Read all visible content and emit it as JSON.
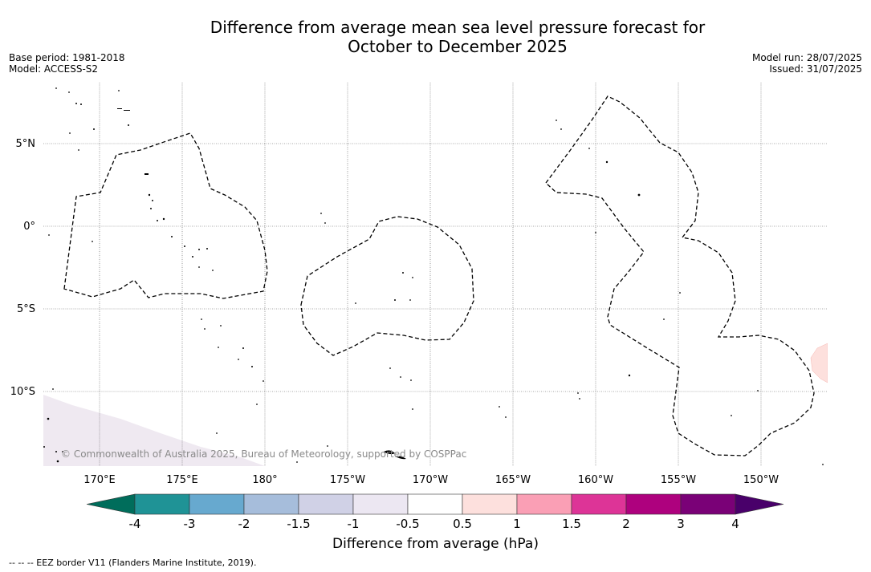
{
  "title_line1": "Difference from average mean sea level pressure forecast for",
  "title_line2": "October to December 2025",
  "meta_left": [
    "Base period: 1981-2018",
    "Model: ACCESS-S2"
  ],
  "meta_right": [
    "Model run: 28/07/2025",
    "Issued: 31/07/2025"
  ],
  "copyright": "© Commonwealth of Australia 2025, Bureau of Meteorology, supported by COSPPac",
  "lat_labels": [
    "5°N",
    "0°",
    "5°S",
    "10°S"
  ],
  "lon_labels": [
    "170°E",
    "175°E",
    "180°",
    "175°W",
    "170°W",
    "165°W",
    "160°W",
    "155°W",
    "150°W"
  ],
  "colorbar": {
    "title": "Difference from average (hPa)",
    "tick_labels": [
      "-4",
      "-3",
      "-2",
      "-1.5",
      "-1",
      "-0.5",
      "0.5",
      "1",
      "1.5",
      "2",
      "3",
      "4"
    ],
    "colors": [
      "#006d5b",
      "#1f9396",
      "#67a9cf",
      "#a6bddb",
      "#d0d1e6",
      "#ece7f2",
      "#ffffff",
      "#fde0dd",
      "#fa9fb5",
      "#dd3497",
      "#ae017e",
      "#7a0177",
      "#49006a"
    ]
  },
  "footer": "--  --  -- EEZ border V11 (Flanders Marine Institute, 2019)."
}
